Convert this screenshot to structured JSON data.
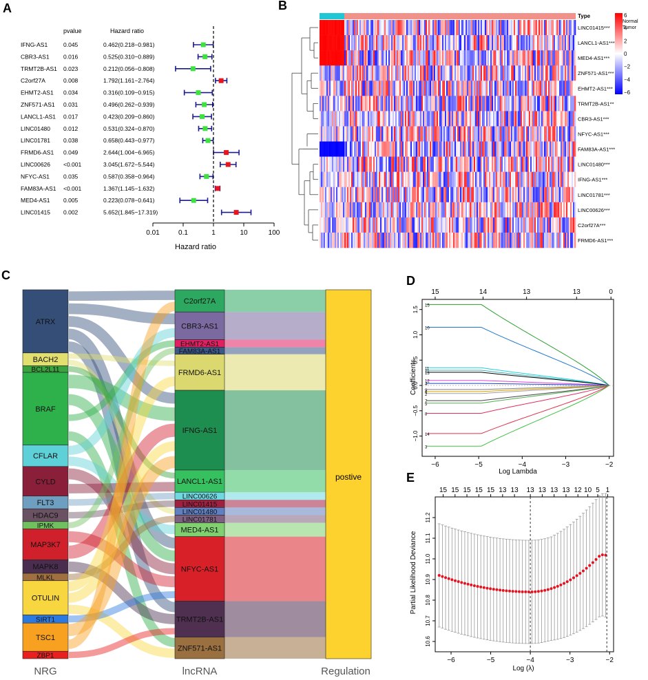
{
  "panel_letters": {
    "a": "A",
    "b": "B",
    "c": "C",
    "d": "D",
    "e": "E"
  },
  "forest": {
    "header_pvalue": "pvalue",
    "header_hr": "Hazard ratio",
    "xlabel": "Hazard ratio",
    "ticks": [
      "0.01",
      "0.1",
      "1",
      "10",
      "100"
    ],
    "tick_values": [
      0.01,
      0.1,
      1,
      10,
      100
    ],
    "rows": [
      {
        "gene": "IFNG-AS1",
        "p": "0.045",
        "hr_text": "0.462(0.218−0.981)",
        "hr": 0.462,
        "lo": 0.218,
        "hi": 0.981,
        "color": "#3ee23e"
      },
      {
        "gene": "CBR3-AS1",
        "p": "0.016",
        "hr_text": "0.525(0.310−0.889)",
        "hr": 0.525,
        "lo": 0.31,
        "hi": 0.889,
        "color": "#3ee23e"
      },
      {
        "gene": "TRMT2B-AS1",
        "p": "0.023",
        "hr_text": "0.212(0.056−0.808)",
        "hr": 0.212,
        "lo": 0.056,
        "hi": 0.808,
        "color": "#3ee23e"
      },
      {
        "gene": "C2orf27A",
        "p": "0.008",
        "hr_text": "1.792(1.161−2.764)",
        "hr": 1.792,
        "lo": 1.161,
        "hi": 2.764,
        "color": "#e8141e"
      },
      {
        "gene": "EHMT2-AS1",
        "p": "0.034",
        "hr_text": "0.316(0.109−0.915)",
        "hr": 0.316,
        "lo": 0.109,
        "hi": 0.915,
        "color": "#3ee23e"
      },
      {
        "gene": "ZNF571-AS1",
        "p": "0.031",
        "hr_text": "0.496(0.262−0.939)",
        "hr": 0.496,
        "lo": 0.262,
        "hi": 0.939,
        "color": "#3ee23e"
      },
      {
        "gene": "LANCL1-AS1",
        "p": "0.017",
        "hr_text": "0.423(0.209−0.860)",
        "hr": 0.423,
        "lo": 0.209,
        "hi": 0.86,
        "color": "#3ee23e"
      },
      {
        "gene": "LINC01480",
        "p": "0.012",
        "hr_text": "0.531(0.324−0.870)",
        "hr": 0.531,
        "lo": 0.324,
        "hi": 0.87,
        "color": "#3ee23e"
      },
      {
        "gene": "LINC01781",
        "p": "0.038",
        "hr_text": "0.658(0.443−0.977)",
        "hr": 0.658,
        "lo": 0.443,
        "hi": 0.977,
        "color": "#3ee23e"
      },
      {
        "gene": "FRMD6-AS1",
        "p": "0.049",
        "hr_text": "2.644(1.004−6.965)",
        "hr": 2.644,
        "lo": 1.004,
        "hi": 6.965,
        "color": "#e8141e"
      },
      {
        "gene": "LINC00626",
        "p": "<0.001",
        "hr_text": "3.045(1.672−5.544)",
        "hr": 3.045,
        "lo": 1.672,
        "hi": 5.544,
        "color": "#e8141e"
      },
      {
        "gene": "NFYC-AS1",
        "p": "0.035",
        "hr_text": "0.587(0.358−0.964)",
        "hr": 0.587,
        "lo": 0.358,
        "hi": 0.964,
        "color": "#3ee23e"
      },
      {
        "gene": "FAM83A-AS1",
        "p": "<0.001",
        "hr_text": "1.367(1.145−1.632)",
        "hr": 1.367,
        "lo": 1.145,
        "hi": 1.632,
        "color": "#e8141e"
      },
      {
        "gene": "MED4-AS1",
        "p": "0.005",
        "hr_text": "0.223(0.078−0.641)",
        "hr": 0.223,
        "lo": 0.078,
        "hi": 0.641,
        "color": "#3ee23e"
      },
      {
        "gene": "LINC01415",
        "p": "0.002",
        "hr_text": "5.652(1.845−17.319)",
        "hr": 5.652,
        "lo": 1.845,
        "hi": 17.319,
        "color": "#e8141e"
      }
    ]
  },
  "heatmap": {
    "type_label": "Type",
    "legend_normal": "Normal",
    "legend_tumor": "Tumor",
    "scale_ticks": [
      "6",
      "4",
      "2",
      "0",
      "−2",
      "−4",
      "−6"
    ],
    "normal_color": "#1fc7d4",
    "tumor_color": "#f0918a",
    "rows": [
      "LINC01415***",
      "LANCL1-AS1***",
      "MED4-AS1***",
      "ZNF571-AS1***",
      "EHMT2-AS1***",
      "TRMT2B-AS1**",
      "CBR3-AS1***",
      "NFYC-AS1***",
      "FAM83A-AS1***",
      "LINC01480***",
      "IFNG-AS1***",
      "LINC01781***",
      "LINC00626***",
      "C2orf27A***",
      "FRMD6-AS1***"
    ]
  },
  "sankey": {
    "axis_nrg": "NRG",
    "axis_lnc": "lncRNA",
    "axis_reg": "Regulation",
    "regulation_label": "postive",
    "nrg": [
      {
        "name": "ATRX",
        "color": "#344e78"
      },
      {
        "name": "BACH2",
        "color": "#e2df6e"
      },
      {
        "name": "BCL2L11",
        "color": "#3aa23e"
      },
      {
        "name": "BRAF",
        "color": "#2eb04a"
      },
      {
        "name": "CFLAR",
        "color": "#5ed0d8"
      },
      {
        "name": "CYLD",
        "color": "#8a1f3a"
      },
      {
        "name": "FLT3",
        "color": "#6e9ec0"
      },
      {
        "name": "HDAC9",
        "color": "#6a5262"
      },
      {
        "name": "IPMK",
        "color": "#70c060"
      },
      {
        "name": "MAP3K7",
        "color": "#d0202c"
      },
      {
        "name": "MAPK8",
        "color": "#4a2e50"
      },
      {
        "name": "MLKL",
        "color": "#a07040"
      },
      {
        "name": "OTULIN",
        "color": "#f8d640"
      },
      {
        "name": "SIRT1",
        "color": "#2c7ae0"
      },
      {
        "name": "TSC1",
        "color": "#f8a020"
      },
      {
        "name": "ZBP1",
        "color": "#e82020"
      }
    ],
    "lnc": [
      {
        "name": "C2orf27A",
        "color": "#2ca860"
      },
      {
        "name": "CBR3-AS1",
        "color": "#7a6aa0"
      },
      {
        "name": "EHMT2-AS1",
        "color": "#e02060"
      },
      {
        "name": "FAM83A-AS1",
        "color": "#3a5888"
      },
      {
        "name": "FRMD6-AS1",
        "color": "#dcd870"
      },
      {
        "name": "IFNG-AS1",
        "color": "#1e8e50"
      },
      {
        "name": "LANCL1-AS1",
        "color": "#36c060"
      },
      {
        "name": "LINC00626",
        "color": "#70d8e0"
      },
      {
        "name": "LINC01415",
        "color": "#a02040"
      },
      {
        "name": "LINC01480",
        "color": "#6080c0"
      },
      {
        "name": "LINC01781",
        "color": "#806080"
      },
      {
        "name": "MED4-AS1",
        "color": "#80d070"
      },
      {
        "name": "NFYC-AS1",
        "color": "#d82028"
      },
      {
        "name": "TRMT2B-AS1",
        "color": "#503050"
      },
      {
        "name": "ZNF571-AS1",
        "color": "#9a7040"
      }
    ],
    "regulation_color": "#fdd22e"
  },
  "lasso_coef": {
    "xlabel": "Log Lambda",
    "ylabel": "Coefficients",
    "xlim": [
      -6.3,
      -1.9
    ],
    "ylim": [
      -1.4,
      1.7
    ],
    "xticks": [
      "−6",
      "−5",
      "−4",
      "−3",
      "−2"
    ],
    "xtick_values": [
      -6,
      -5,
      -4,
      -3,
      -2
    ],
    "yticks": [
      "1.5",
      "1.0",
      "0.5",
      "0.0",
      "−0.5",
      "−1.0"
    ],
    "ytick_values": [
      1.5,
      1.0,
      0.5,
      0.0,
      -0.5,
      -1.0
    ],
    "top_ticks": [
      "15",
      "14",
      "13",
      "13",
      "0"
    ],
    "top_tick_values": [
      -6,
      -4.9,
      -3.9,
      -2.75,
      -1.96
    ],
    "series": [
      {
        "label": "15",
        "start": 1.6,
        "color": "#2ca02c"
      },
      {
        "label": "10",
        "start": 1.15,
        "color": "#1f78d0"
      },
      {
        "label": "11",
        "start": 0.35,
        "color": "#20d0e0"
      },
      {
        "label": "1",
        "start": 0.3,
        "color": "#40b0b0"
      },
      {
        "label": "13",
        "start": 0.26,
        "color": "#000000"
      },
      {
        "label": "12",
        "start": 0.1,
        "color": "#e040e0"
      },
      {
        "label": "4",
        "start": 0.04,
        "color": "#1a3cc8"
      },
      {
        "label": "9",
        "start": -0.08,
        "color": "#808080"
      },
      {
        "label": "6",
        "start": -0.12,
        "color": "#e0a000"
      },
      {
        "label": "2",
        "start": -0.16,
        "color": "#a0a0a0"
      },
      {
        "label": "7",
        "start": -0.3,
        "color": "#444444"
      },
      {
        "label": "5",
        "start": -0.35,
        "color": "#50b050"
      },
      {
        "label": "8",
        "start": -0.55,
        "color": "#e03060"
      },
      {
        "label": "14",
        "start": -0.95,
        "color": "#e0304a"
      },
      {
        "label": "3",
        "start": -1.2,
        "color": "#40c040"
      }
    ]
  },
  "lasso_cv": {
    "xlabel": "Log (λ)",
    "ylabel": "Partial Likelihood Deviance",
    "xlim": [
      -6.4,
      -1.9
    ],
    "ylim": [
      10.55,
      11.3
    ],
    "xticks": [
      "−6",
      "−5",
      "−4",
      "−3",
      "−2"
    ],
    "xtick_values": [
      -6,
      -5,
      -4,
      -3,
      -2
    ],
    "yticks": [
      "11.2",
      "11.1",
      "11.0",
      "10.9",
      "10.8",
      "10.7",
      "10.6"
    ],
    "ytick_values": [
      11.2,
      11.1,
      11.0,
      10.9,
      10.8,
      10.7,
      10.6
    ],
    "top_ticks": [
      "15",
      "15",
      "15",
      "15",
      "15",
      "13",
      "13",
      "13",
      "13",
      "13",
      "13",
      "12",
      "10",
      "5",
      "1"
    ],
    "top_tick_values": [
      -6.2,
      -5.9,
      -5.6,
      -5.3,
      -5.0,
      -4.7,
      -4.4,
      -4.0,
      -3.7,
      -3.4,
      -3.1,
      -2.8,
      -2.55,
      -2.3,
      -2.05
    ],
    "lambda_min": -4.0,
    "lambda_1se": -2.07
  }
}
